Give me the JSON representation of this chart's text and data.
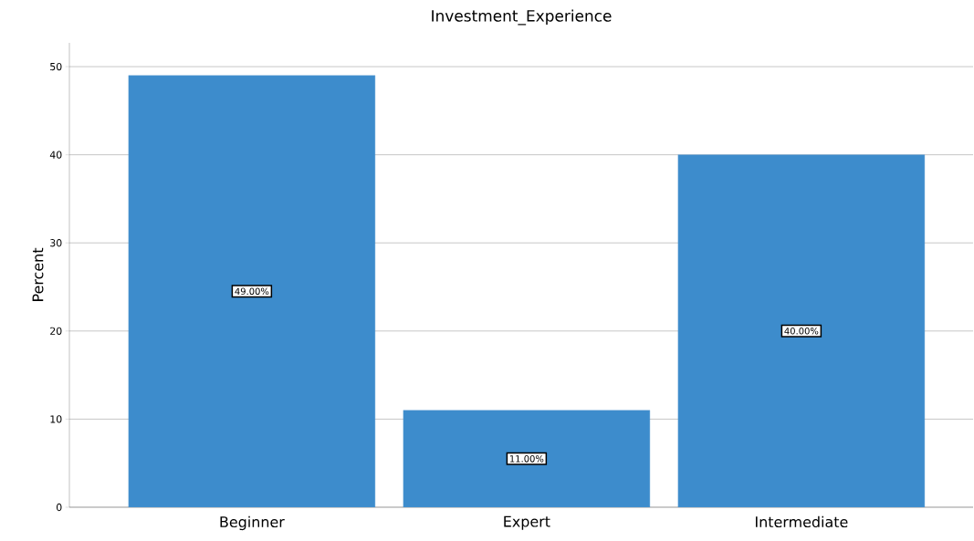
{
  "chart_data": {
    "type": "bar",
    "title": "Investment_Experience",
    "ylabel": "Percent",
    "categories": [
      "Beginner",
      "Expert",
      "Intermediate"
    ],
    "values": [
      49,
      11,
      40
    ],
    "value_labels": [
      "49.00%",
      "11.00%",
      "40.00%"
    ],
    "color": "#3d8ccc",
    "ylim": [
      0,
      52.7
    ],
    "yticks": [
      0,
      10,
      20,
      30,
      40,
      50
    ],
    "grid": "y"
  }
}
